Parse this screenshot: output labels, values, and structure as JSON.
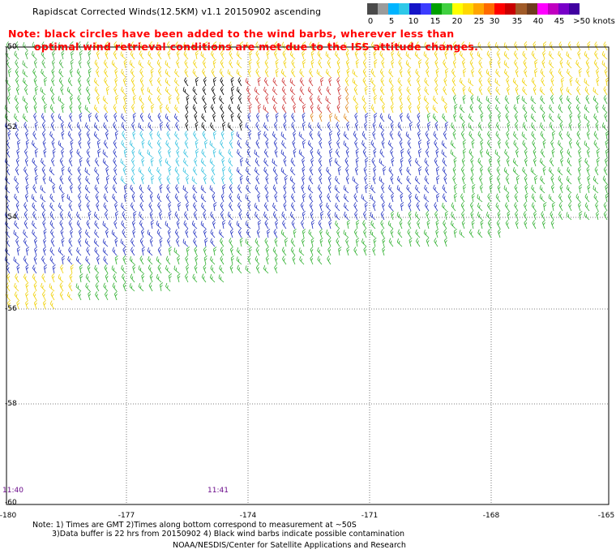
{
  "title": "Rapidscat Corrected Winds(12.5KM) v1.1 20150902 ascending",
  "note_line1": "Note: black circles have been added to the wind barbs, wherever less than",
  "note_line2": "optimal wind retrieval conditions are met due to the ISS attitude changes.",
  "legend": {
    "labels": [
      "0",
      "5",
      "10",
      "15",
      "20",
      "25",
      "30",
      "35",
      "40",
      "45",
      ">50 knots"
    ],
    "colors": [
      "#4a4a4a",
      "#9b9b9b",
      "#00b4ff",
      "#2ec8e8",
      "#1414c8",
      "#3c3cff",
      "#00a000",
      "#40d040",
      "#ffff00",
      "#ffd700",
      "#ffa500",
      "#ff6a00",
      "#ff0000",
      "#c80000",
      "#a05a28",
      "#6e3c1e",
      "#ff00ff",
      "#c000c0",
      "#7800c8",
      "#4000a0"
    ]
  },
  "lat_labels": [
    "-50",
    "-52",
    "-54",
    "-56",
    "-58",
    "-60"
  ],
  "lon_labels": [
    "-180",
    "-177",
    "-174",
    "-171",
    "-168",
    "-165"
  ],
  "time_labels": [
    "11:40",
    "11:41"
  ],
  "footer": {
    "line1": "Note: 1) Times are GMT 2)Times along bottom correspond to measurement at ~50S",
    "line2": "3)Data buffer is 22 hrs from 20150902 4) Black wind barbs indicate possible contamination",
    "line3": "NOAA/NESDIS/Center for Satellite Applications and Research"
  }
}
